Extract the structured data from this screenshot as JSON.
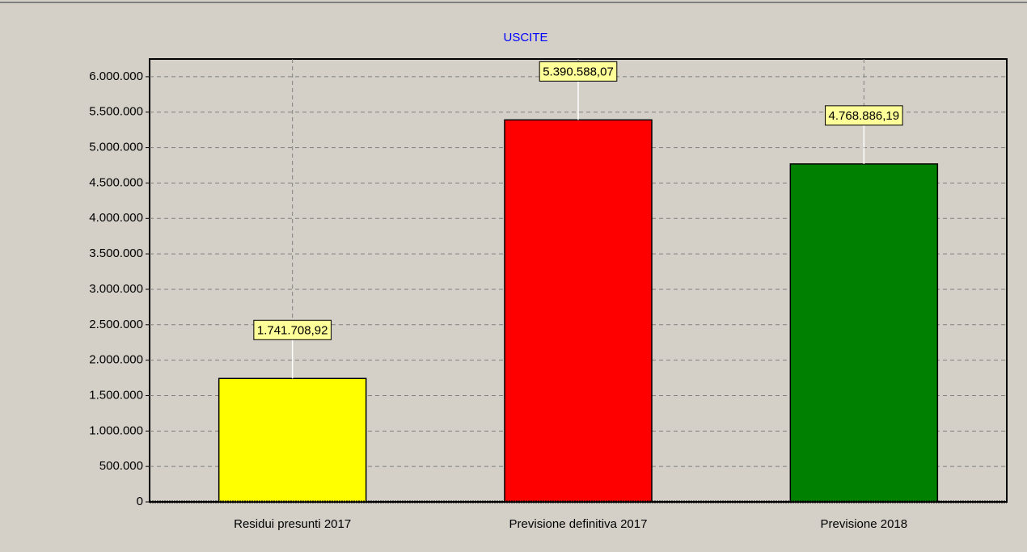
{
  "chart_data": {
    "type": "bar",
    "title": "USCITE",
    "categories": [
      "Residui presunti 2017",
      "Previsione definitiva 2017",
      "Previsione 2018"
    ],
    "values": [
      1741708.92,
      5390588.07,
      4768886.19
    ],
    "value_labels": [
      "1.741.708,92",
      "5.390.588,07",
      "4.768.886,19"
    ],
    "colors": [
      "#ffff00",
      "#ff0000",
      "#008000"
    ],
    "ylim": [
      0,
      6250000
    ],
    "yticks": [
      0,
      {
        "value": 500000,
        "label": "500.000"
      },
      {
        "value": 1000000,
        "label": "1.000.000"
      },
      {
        "value": 1500000,
        "label": "1.500.000"
      },
      {
        "value": 2000000,
        "label": "2.000.000"
      },
      {
        "value": 2500000,
        "label": "2.500.000"
      },
      {
        "value": 3000000,
        "label": "3.000.000"
      },
      {
        "value": 3500000,
        "label": "3.500.000"
      },
      {
        "value": 4000000,
        "label": "4.000.000"
      },
      {
        "value": 4500000,
        "label": "4.500.000"
      },
      {
        "value": 5000000,
        "label": "5.000.000"
      },
      {
        "value": 5500000,
        "label": "5.500.000"
      },
      {
        "value": 6000000,
        "label": "6.000.000"
      }
    ],
    "grid": true
  }
}
